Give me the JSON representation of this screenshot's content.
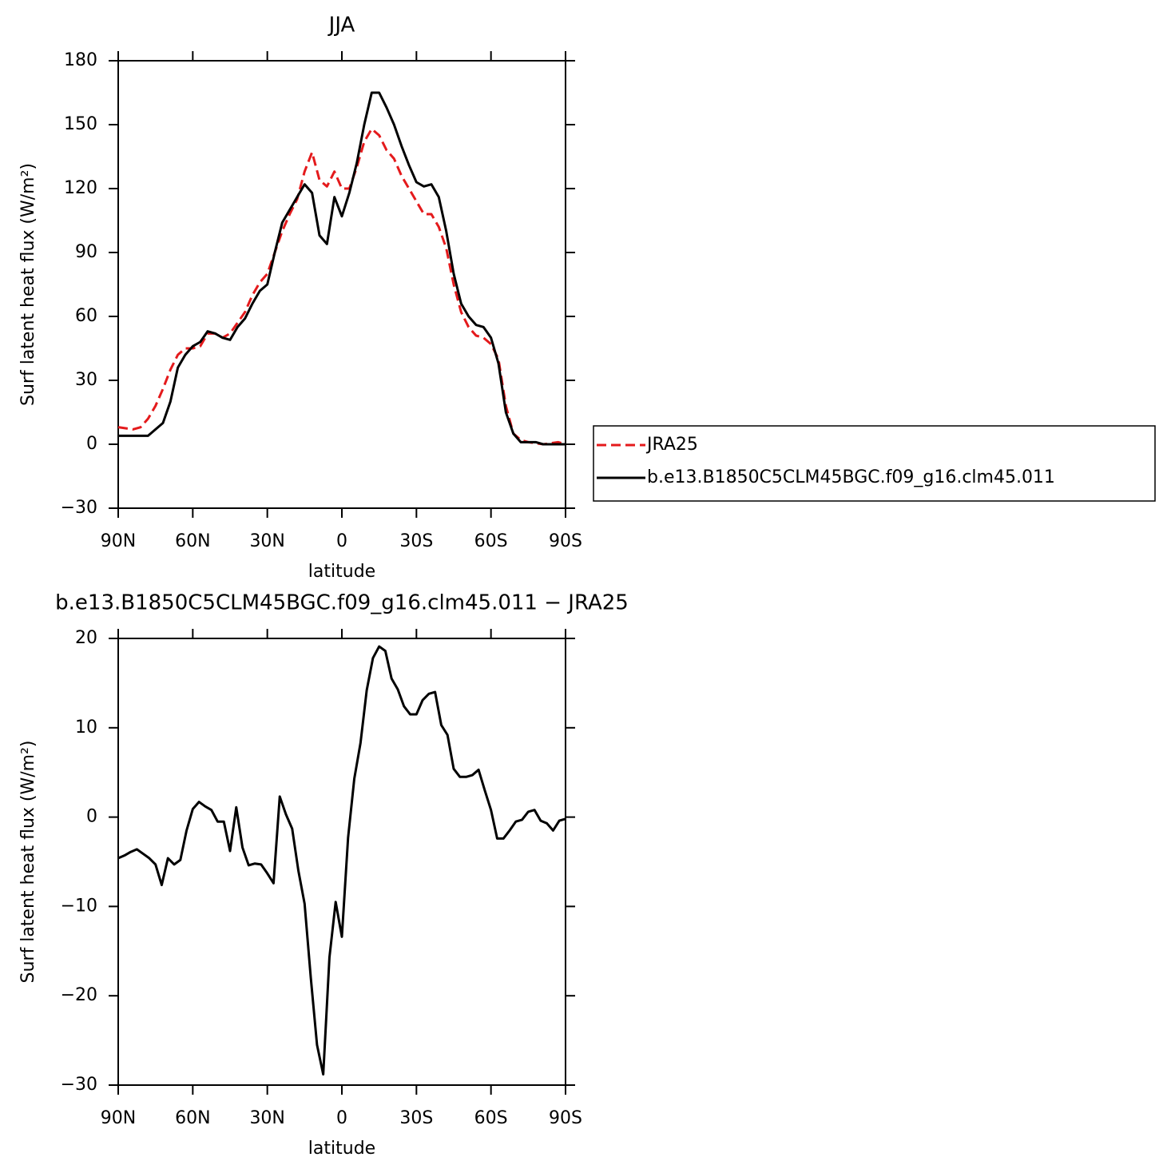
{
  "chart_data": [
    {
      "type": "line",
      "title": "JJA",
      "x_label": "latitude",
      "y_label": "Surf latent heat flux (W/m²)",
      "x": [
        90,
        87,
        84,
        81,
        78,
        75,
        72,
        69,
        66,
        63,
        60,
        57,
        54,
        51,
        48,
        45,
        42,
        39,
        36,
        33,
        30,
        27,
        24,
        21,
        18,
        15,
        12,
        9,
        6,
        3,
        0,
        -3,
        -6,
        -9,
        -12,
        -15,
        -18,
        -21,
        -24,
        -27,
        -30,
        -33,
        -36,
        -39,
        -42,
        -45,
        -48,
        -51,
        -54,
        -57,
        -60,
        -63,
        -66,
        -69,
        -72,
        -75,
        -78,
        -81,
        -84,
        -87,
        -90
      ],
      "series": [
        {
          "name": "JRA25",
          "color": "#e41a1c",
          "dash": "dashed",
          "values": [
            8,
            7.5,
            7,
            8,
            12,
            18,
            26,
            35,
            42,
            45,
            45,
            46,
            52,
            52,
            50,
            52,
            57,
            62,
            70,
            76,
            80,
            90,
            100,
            108,
            115,
            128,
            137,
            124,
            121,
            128,
            120,
            120,
            130,
            142,
            148,
            145,
            138,
            134,
            126,
            120,
            114,
            108,
            108,
            102,
            92,
            75,
            62,
            55,
            51,
            50,
            47,
            40,
            18,
            5,
            2,
            1,
            0.5,
            0,
            0.5,
            1,
            0
          ]
        },
        {
          "name": "b.e13.B1850C5CLM45BGC.f09_g16.clm45.011",
          "color": "#000000",
          "dash": "solid",
          "values": [
            4,
            4,
            4,
            4,
            4,
            7,
            10,
            20,
            36,
            42,
            46,
            48,
            53,
            52,
            50,
            49,
            55,
            59,
            66,
            72,
            75,
            90,
            104,
            110,
            116,
            122,
            118,
            98,
            94,
            116,
            107,
            118,
            132,
            150,
            165,
            165,
            158,
            150,
            140,
            131,
            123,
            121,
            122,
            116,
            100,
            80,
            66,
            60,
            56,
            55,
            50,
            38,
            15,
            5,
            1,
            1,
            1,
            0,
            0,
            0,
            0
          ]
        }
      ],
      "xlim": [
        90,
        -90
      ],
      "xticks": [
        {
          "value": 90,
          "label": "90N"
        },
        {
          "value": 60,
          "label": "60N"
        },
        {
          "value": 30,
          "label": "30N"
        },
        0,
        {
          "value": -30,
          "label": "30S"
        },
        {
          "value": -60,
          "label": "60S"
        },
        {
          "value": -90,
          "label": "90S"
        }
      ],
      "ylim": [
        -30,
        180
      ],
      "yticks": [
        {
          "value": -30,
          "label": "−30"
        },
        0,
        30,
        60,
        90,
        120,
        150,
        180
      ],
      "legend_position": "right"
    },
    {
      "type": "line",
      "title": "b.e13.B1850C5CLM45BGC.f09_g16.clm45.011 − JRA25",
      "x_label": "latitude",
      "y_label": "Surf latent heat flux (W/m²)",
      "x": [
        90,
        87.5,
        85,
        82.5,
        80,
        77.5,
        75,
        72.5,
        70,
        67.5,
        65,
        62.5,
        60,
        57.5,
        55,
        52.5,
        50,
        47.5,
        45,
        42.5,
        40,
        37.5,
        35,
        32.5,
        30,
        27.5,
        25,
        22.5,
        20,
        17.5,
        15,
        12.5,
        10,
        7.5,
        5,
        2.5,
        0,
        -2.5,
        -5,
        -7.5,
        -10,
        -12.5,
        -15,
        -17.5,
        -20,
        -22.5,
        -25,
        -27.5,
        -30,
        -32.5,
        -35,
        -37.5,
        -40,
        -42.5,
        -45,
        -47.5,
        -50,
        -52.5,
        -55,
        -57.5,
        -60,
        -62.5,
        -65,
        -67.5,
        -70,
        -72.5,
        -75,
        -77.5,
        -80,
        -82.5,
        -85,
        -87.5,
        -90
      ],
      "series": [
        {
          "color": "#000000",
          "dash": "solid",
          "values": [
            -4.6,
            -4.3,
            -3.9,
            -3.6,
            -4.1,
            -4.6,
            -5.3,
            -7.6,
            -4.6,
            -5.3,
            -4.8,
            -1.5,
            0.9,
            1.7,
            1.2,
            0.8,
            -0.5,
            -0.5,
            -3.8,
            1.1,
            -3.4,
            -5.4,
            -5.2,
            -5.3,
            -6.3,
            -7.4,
            2.3,
            0.3,
            -1.3,
            -6,
            -9.7,
            -18,
            -25.5,
            -28.8,
            -15.7,
            -9.5,
            -13.4,
            -2.3,
            4.3,
            8.3,
            14.2,
            17.8,
            19.1,
            18.6,
            15.5,
            14.3,
            12.4,
            11.5,
            11.5,
            13.1,
            13.8,
            14,
            10.3,
            9.2,
            5.4,
            4.5,
            4.5,
            4.7,
            5.3,
            3,
            0.8,
            -2.4,
            -2.4,
            -1.5,
            -0.5,
            -0.3,
            0.6,
            0.8,
            -0.4,
            -0.7,
            -1.5,
            -0.4,
            -0.2
          ]
        }
      ],
      "xlim": [
        90,
        -90
      ],
      "xticks": [
        {
          "value": 90,
          "label": "90N"
        },
        {
          "value": 60,
          "label": "60N"
        },
        {
          "value": 30,
          "label": "30N"
        },
        0,
        {
          "value": -30,
          "label": "30S"
        },
        {
          "value": -60,
          "label": "60S"
        },
        {
          "value": -90,
          "label": "90S"
        }
      ],
      "ylim": [
        -30,
        20
      ],
      "yticks": [
        {
          "value": -30,
          "label": "−30"
        },
        {
          "value": -20,
          "label": "−20"
        },
        {
          "value": -10,
          "label": "−10"
        },
        0,
        10,
        20
      ]
    }
  ]
}
